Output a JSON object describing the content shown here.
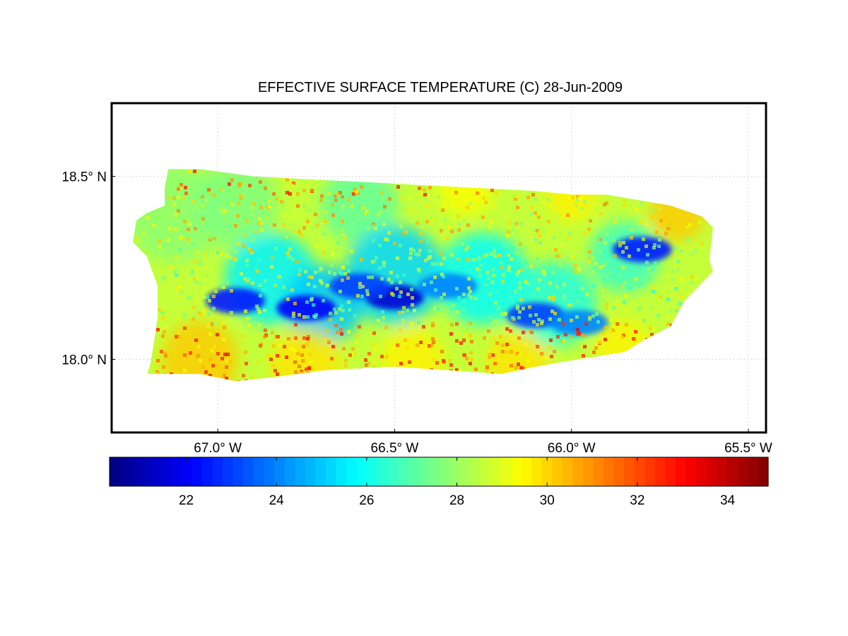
{
  "map": {
    "title": "EFFECTIVE SURFACE TEMPERATURE (C) 28-Jun-2009",
    "lon_range": [
      -67.3,
      -65.45
    ],
    "lat_range": [
      17.8,
      18.7
    ],
    "lon_ticks": [
      {
        "value": -67.0,
        "label": "67.0° W"
      },
      {
        "value": -66.5,
        "label": "66.5° W"
      },
      {
        "value": -66.0,
        "label": "66.0° W"
      },
      {
        "value": -65.5,
        "label": "65.5° W"
      }
    ],
    "lat_ticks": [
      {
        "value": 18.5,
        "label": "18.5° N"
      },
      {
        "value": 18.0,
        "label": "18.0° N"
      }
    ],
    "grid": true,
    "grid_style": "dotted",
    "region": "Puerto Rico",
    "colormap": "jet",
    "colors": {
      "jet_stops": [
        "#00007f",
        "#0000ff",
        "#007fff",
        "#00ffff",
        "#7fff7f",
        "#ffff00",
        "#ff7f00",
        "#ff0000",
        "#7f0000"
      ],
      "water": "#ffffff",
      "frame": "#000000",
      "grid": "#bcbcbc"
    }
  },
  "colorbar": {
    "range": [
      20.3,
      34.9
    ],
    "orientation": "horizontal",
    "location": "below",
    "ticks": [
      {
        "value": 22,
        "label": "22"
      },
      {
        "value": 24,
        "label": "24"
      },
      {
        "value": 26,
        "label": "26"
      },
      {
        "value": 28,
        "label": "28"
      },
      {
        "value": 30,
        "label": "30"
      },
      {
        "value": 32,
        "label": "32"
      },
      {
        "value": 34,
        "label": "34"
      }
    ]
  },
  "chart_data": {
    "type": "heatmap",
    "title": "EFFECTIVE SURFACE TEMPERATURE (C) 28-Jun-2009",
    "xlabel": "",
    "ylabel": "",
    "xlim": [
      -67.3,
      -65.45
    ],
    "ylim": [
      17.8,
      18.7
    ],
    "value_range": [
      20.3,
      34.9
    ],
    "coastline": [
      [
        -67.14,
        18.52
      ],
      [
        -67.05,
        18.52
      ],
      [
        -66.9,
        18.5
      ],
      [
        -66.7,
        18.49
      ],
      [
        -66.5,
        18.48
      ],
      [
        -66.3,
        18.47
      ],
      [
        -66.1,
        18.46
      ],
      [
        -66.0,
        18.45
      ],
      [
        -65.9,
        18.45
      ],
      [
        -65.78,
        18.43
      ],
      [
        -65.72,
        18.42
      ],
      [
        -65.63,
        18.39
      ],
      [
        -65.6,
        18.36
      ],
      [
        -65.61,
        18.27
      ],
      [
        -65.6,
        18.24
      ],
      [
        -65.63,
        18.21
      ],
      [
        -65.68,
        18.16
      ],
      [
        -65.72,
        18.09
      ],
      [
        -65.8,
        18.05
      ],
      [
        -65.85,
        18.02
      ],
      [
        -65.98,
        18.0
      ],
      [
        -66.1,
        17.98
      ],
      [
        -66.2,
        17.96
      ],
      [
        -66.35,
        17.97
      ],
      [
        -66.5,
        17.98
      ],
      [
        -66.7,
        17.97
      ],
      [
        -66.85,
        17.95
      ],
      [
        -66.95,
        17.94
      ],
      [
        -67.05,
        17.96
      ],
      [
        -67.2,
        17.96
      ],
      [
        -67.19,
        17.99
      ],
      [
        -67.18,
        18.05
      ],
      [
        -67.17,
        18.12
      ],
      [
        -67.17,
        18.2
      ],
      [
        -67.2,
        18.28
      ],
      [
        -67.24,
        18.32
      ],
      [
        -67.23,
        18.38
      ],
      [
        -67.2,
        18.4
      ],
      [
        -67.15,
        18.42
      ],
      [
        -67.15,
        18.47
      ]
    ],
    "cool_features": [
      {
        "lon": -66.5,
        "lat": 18.17,
        "value": 21.5
      },
      {
        "lon": -66.75,
        "lat": 18.14,
        "value": 22.0
      },
      {
        "lon": -66.95,
        "lat": 18.16,
        "value": 22.5
      },
      {
        "lon": -66.6,
        "lat": 18.2,
        "value": 23.0
      },
      {
        "lon": -66.35,
        "lat": 18.2,
        "value": 24.0
      },
      {
        "lon": -66.1,
        "lat": 18.12,
        "value": 23.0
      },
      {
        "lon": -65.98,
        "lat": 18.1,
        "value": 24.0
      },
      {
        "lon": -65.8,
        "lat": 18.3,
        "value": 22.5
      }
    ],
    "warm_features": [
      {
        "lon": -67.0,
        "lat": 18.0,
        "value": 31.0
      },
      {
        "lon": -66.3,
        "lat": 17.99,
        "value": 30.5
      },
      {
        "lon": -65.7,
        "lat": 18.38,
        "value": 31.0
      }
    ]
  }
}
